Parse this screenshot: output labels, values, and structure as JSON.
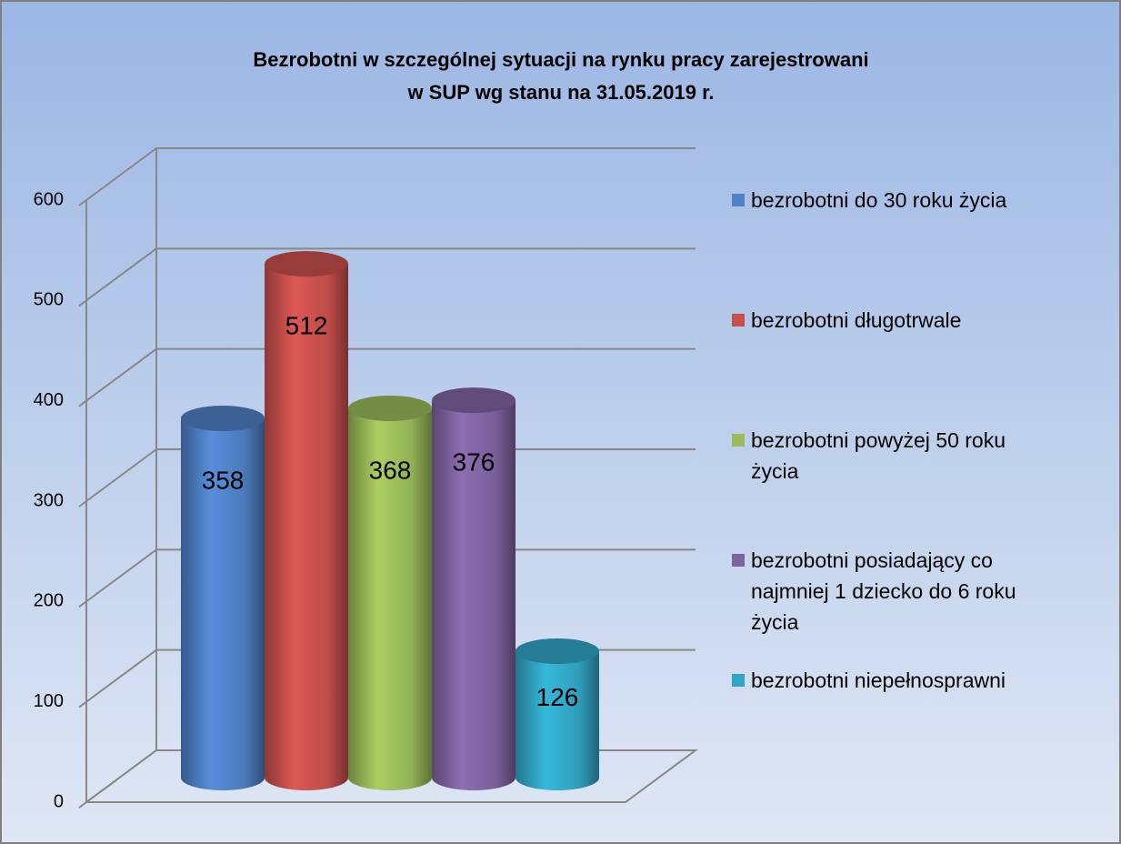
{
  "chart_data": {
    "type": "cylinder",
    "title": [
      "Bezrobotni w szczególnej sytuacji na rynku pracy zarejestrowani",
      "w SUP wg stanu na 31.05.2019 r."
    ],
    "categories": [
      "bezrobotni do 30 roku życia",
      "bezrobotni długotrwale",
      "bezrobotni powyżej 50 roku życia",
      "bezrobotni posiadający co najmniej 1 dziecko do 6 roku życia",
      "bezrobotni niepełnosprawni"
    ],
    "values": [
      358,
      512,
      368,
      376,
      126
    ],
    "colors": [
      "#4f81c7",
      "#c9504d",
      "#9bbb59",
      "#8064a2",
      "#31a7c6"
    ],
    "ylim": [
      0,
      600
    ],
    "yticks": [
      0,
      100,
      200,
      300,
      400,
      500,
      600
    ],
    "grid": true,
    "legend": "right"
  }
}
